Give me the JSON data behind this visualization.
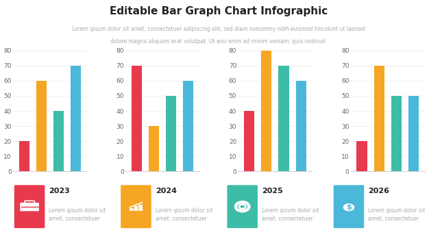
{
  "title": "Editable Bar Graph Chart Infographic",
  "subtitle_line1": "Lorem ipsum dolor sit amet, consectetuer adipiscing elit, sed diam nonummy nibh euismod tincidunt ut laoreet",
  "subtitle_line2": "dolore magna aliquam erat volutpat. Ut wisi enim ad minim veniam, quis nostrud.",
  "background_color": "#ffffff",
  "charts": [
    {
      "values": [
        20,
        60,
        40,
        70
      ],
      "colors": [
        "#e8394d",
        "#f5a623",
        "#3dbda7",
        "#4ab8d8"
      ]
    },
    {
      "values": [
        70,
        30,
        50,
        60
      ],
      "colors": [
        "#e8394d",
        "#f5a623",
        "#3dbda7",
        "#4ab8d8"
      ]
    },
    {
      "values": [
        40,
        80,
        70,
        60
      ],
      "colors": [
        "#e8394d",
        "#f5a623",
        "#3dbda7",
        "#4ab8d8"
      ]
    },
    {
      "values": [
        20,
        70,
        50,
        50
      ],
      "colors": [
        "#e8394d",
        "#f5a623",
        "#3dbda7",
        "#4ab8d8"
      ]
    }
  ],
  "legend_items": [
    {
      "year": "2023",
      "icon_color": "#e8394d"
    },
    {
      "year": "2024",
      "icon_color": "#f5a623"
    },
    {
      "year": "2025",
      "icon_color": "#3dbda7"
    },
    {
      "year": "2026",
      "icon_color": "#4ab8d8"
    }
  ],
  "legend_text": "Lorem ipsum dolor sit\namet, consectetuer",
  "ylim": [
    0,
    80
  ],
  "yticks": [
    0,
    10,
    20,
    30,
    40,
    50,
    60,
    70,
    80
  ],
  "title_fontsize": 11,
  "subtitle_fontsize": 5.5,
  "axis_label_fontsize": 6.5,
  "year_fontsize": 8,
  "desc_fontsize": 5.5,
  "bar_width": 0.6,
  "grid_color": "#eeeeee",
  "tick_color": "#666666",
  "title_color": "#222222",
  "subtitle_color": "#aaaaaa"
}
